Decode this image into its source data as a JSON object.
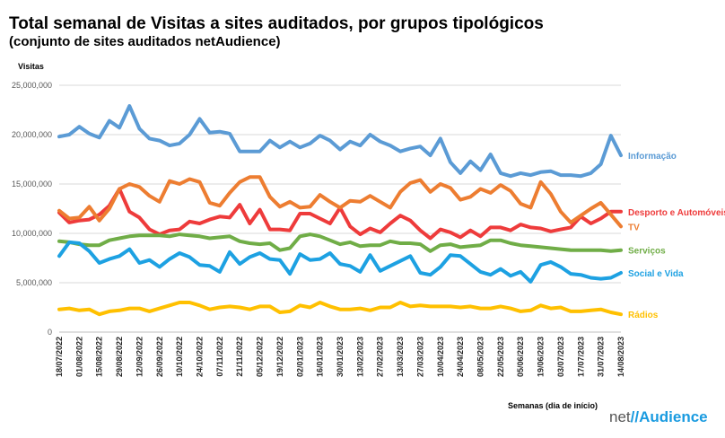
{
  "title": "Total semanal de Visitas a sites auditados, por grupos tipológicos",
  "subtitle": "(conjunto de sites auditados netAudience)",
  "logo": {
    "prefix": "net",
    "slash": "//",
    "brand": "Audience"
  },
  "chart_data": {
    "type": "line",
    "ylabel": "Visitas",
    "xlabel": "Semanas  (dia de início)",
    "ylim": [
      0,
      25000000
    ],
    "yticks": [
      0,
      5000000,
      10000000,
      15000000,
      20000000,
      25000000
    ],
    "ytick_labels": [
      "0",
      "5,000,000",
      "10,000,000",
      "15,000,000",
      "20,000,000",
      "25,000,000"
    ],
    "grid": true,
    "legend": "right-end labels",
    "x": [
      "18/07/2022",
      "25/07/2022",
      "01/08/2022",
      "08/08/2022",
      "15/08/2022",
      "22/08/2022",
      "29/08/2022",
      "05/09/2022",
      "12/09/2022",
      "19/09/2022",
      "26/09/2022",
      "03/10/2022",
      "10/10/2022",
      "17/10/2022",
      "24/10/2022",
      "31/10/2022",
      "07/11/2022",
      "14/11/2022",
      "21/11/2022",
      "28/11/2022",
      "05/12/2022",
      "12/12/2022",
      "19/12/2022",
      "26/12/2022",
      "02/01/2023",
      "09/01/2023",
      "16/01/2023",
      "23/01/2023",
      "30/01/2023",
      "06/02/2023",
      "13/02/2023",
      "20/02/2023",
      "27/02/2023",
      "06/03/2023",
      "13/03/2023",
      "20/03/2023",
      "27/03/2023",
      "03/04/2023",
      "10/04/2023",
      "17/04/2023",
      "24/04/2023",
      "01/05/2023",
      "08/05/2023",
      "15/05/2023",
      "22/05/2023",
      "29/05/2023",
      "05/06/2023",
      "12/06/2023",
      "19/06/2023",
      "26/06/2023",
      "03/07/2023",
      "10/07/2023",
      "17/07/2023",
      "24/07/2023",
      "31/07/2023",
      "07/08/2023",
      "14/08/2023"
    ],
    "x_tick_labels": [
      "18/07/2022",
      "01/08/2022",
      "15/08/2022",
      "29/08/2022",
      "12/09/2022",
      "26/09/2022",
      "10/10/2022",
      "24/10/2022",
      "07/11/2022",
      "21/11/2022",
      "05/12/2022",
      "19/12/2022",
      "02/01/2023",
      "16/01/2023",
      "30/01/2023",
      "13/02/2023",
      "27/02/2023",
      "13/03/2023",
      "27/03/2023",
      "10/04/2023",
      "24/04/2023",
      "08/05/2023",
      "22/05/2023",
      "05/06/2023",
      "19/06/2023",
      "03/07/2023",
      "17/07/2023",
      "31/07/2023",
      "14/08/2023"
    ],
    "series": [
      {
        "name": "Informação",
        "color": "#5b9bd5",
        "values": [
          19800000,
          20000000,
          20800000,
          20100000,
          19700000,
          21400000,
          20700000,
          22900000,
          20600000,
          19600000,
          19400000,
          18900000,
          19100000,
          20000000,
          21600000,
          20200000,
          20300000,
          20100000,
          18300000,
          18300000,
          18300000,
          19400000,
          18700000,
          19300000,
          18700000,
          19100000,
          19900000,
          19400000,
          18500000,
          19300000,
          18900000,
          20000000,
          19300000,
          18900000,
          18300000,
          18600000,
          18800000,
          17900000,
          19600000,
          17200000,
          16100000,
          17300000,
          16400000,
          18000000,
          16100000,
          15800000,
          16100000,
          15900000,
          16200000,
          16300000,
          15900000,
          15900000,
          15800000,
          16100000,
          17000000,
          19900000,
          17900000
        ]
      },
      {
        "name": "Desporto e Automóveis",
        "color": "#ee3b3b",
        "values": [
          12100000,
          11100000,
          11300000,
          11400000,
          11900000,
          12800000,
          14500000,
          12200000,
          11600000,
          10400000,
          9900000,
          10300000,
          10400000,
          11200000,
          11000000,
          11400000,
          11700000,
          11600000,
          12900000,
          11000000,
          12400000,
          10400000,
          10400000,
          10300000,
          12000000,
          12000000,
          11500000,
          11000000,
          12600000,
          10700000,
          9900000,
          10500000,
          10100000,
          11000000,
          11800000,
          11300000,
          10300000,
          9500000,
          10400000,
          10100000,
          9600000,
          10300000,
          9700000,
          10600000,
          10600000,
          10300000,
          10900000,
          10600000,
          10500000,
          10200000,
          10400000,
          10600000,
          11700000,
          11000000,
          11500000,
          12200000,
          12200000
        ]
      },
      {
        "name": "TV",
        "color": "#ed7d31",
        "values": [
          12300000,
          11500000,
          11600000,
          12700000,
          11300000,
          12500000,
          14500000,
          15000000,
          14700000,
          13800000,
          13200000,
          15300000,
          15000000,
          15500000,
          15200000,
          13100000,
          12800000,
          14100000,
          15200000,
          15700000,
          15700000,
          13700000,
          12700000,
          13200000,
          12600000,
          12700000,
          13900000,
          13200000,
          12600000,
          13300000,
          13200000,
          13800000,
          13200000,
          12600000,
          14200000,
          15100000,
          15400000,
          14200000,
          15000000,
          14600000,
          13400000,
          13700000,
          14500000,
          14100000,
          14900000,
          14300000,
          13000000,
          12600000,
          15200000,
          14000000,
          12200000,
          11100000,
          11800000,
          12500000,
          13100000,
          11900000,
          10700000
        ]
      },
      {
        "name": "Serviços",
        "color": "#70ad47",
        "values": [
          9200000,
          9100000,
          8900000,
          8800000,
          8800000,
          9300000,
          9500000,
          9700000,
          9800000,
          9800000,
          9800000,
          9700000,
          9900000,
          9800000,
          9700000,
          9500000,
          9600000,
          9700000,
          9200000,
          9000000,
          8900000,
          9000000,
          8300000,
          8500000,
          9700000,
          9900000,
          9700000,
          9300000,
          8900000,
          9100000,
          8700000,
          8800000,
          8800000,
          9200000,
          9000000,
          9000000,
          8900000,
          8200000,
          8800000,
          8900000,
          8600000,
          8700000,
          8800000,
          9300000,
          9300000,
          9000000,
          8800000,
          8700000,
          8600000,
          8500000,
          8400000,
          8300000,
          8300000,
          8300000,
          8300000,
          8200000,
          8300000
        ]
      },
      {
        "name": "Social e Vida",
        "color": "#1da1e2",
        "values": [
          7700000,
          9100000,
          9000000,
          8200000,
          7000000,
          7400000,
          7700000,
          8400000,
          7000000,
          7300000,
          6600000,
          7400000,
          8000000,
          7600000,
          6800000,
          6700000,
          6100000,
          8100000,
          6900000,
          7600000,
          8000000,
          7400000,
          7300000,
          5900000,
          7900000,
          7300000,
          7400000,
          8000000,
          6900000,
          6700000,
          6100000,
          7800000,
          6200000,
          6700000,
          7200000,
          7700000,
          6000000,
          5800000,
          6600000,
          7800000,
          7700000,
          6900000,
          6100000,
          5800000,
          6400000,
          5700000,
          6100000,
          5100000,
          6800000,
          7100000,
          6600000,
          5900000,
          5800000,
          5500000,
          5400000,
          5500000,
          6000000
        ]
      },
      {
        "name": "Rádios",
        "color": "#ffc000",
        "values": [
          2300000,
          2400000,
          2200000,
          2300000,
          1800000,
          2100000,
          2200000,
          2400000,
          2400000,
          2100000,
          2400000,
          2700000,
          3000000,
          3000000,
          2700000,
          2300000,
          2500000,
          2600000,
          2500000,
          2300000,
          2600000,
          2600000,
          2000000,
          2100000,
          2700000,
          2500000,
          3000000,
          2600000,
          2300000,
          2300000,
          2400000,
          2200000,
          2500000,
          2500000,
          3000000,
          2600000,
          2700000,
          2600000,
          2600000,
          2600000,
          2500000,
          2600000,
          2400000,
          2400000,
          2600000,
          2400000,
          2100000,
          2200000,
          2700000,
          2400000,
          2500000,
          2100000,
          2100000,
          2200000,
          2300000,
          2000000,
          1800000
        ]
      }
    ]
  }
}
